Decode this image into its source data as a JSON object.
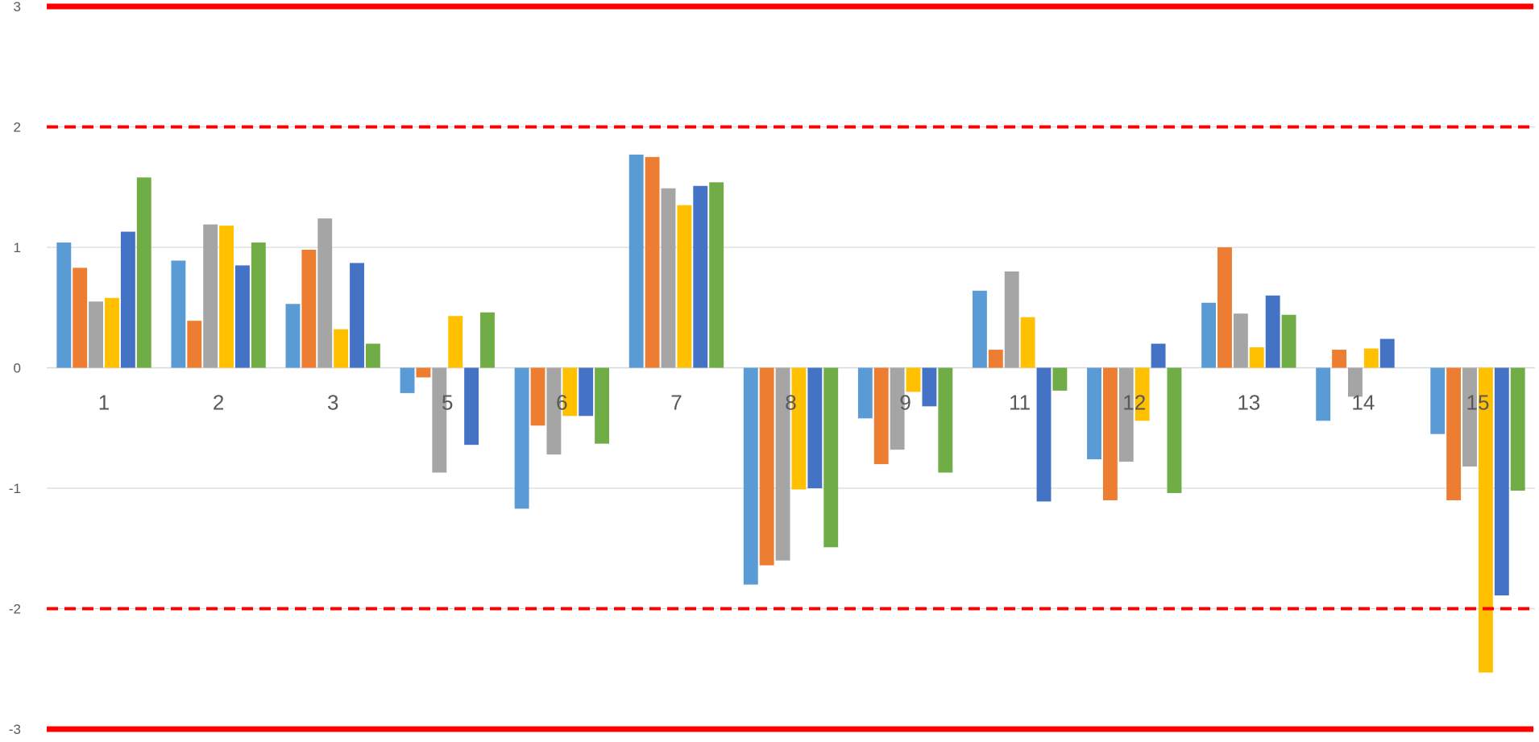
{
  "chart_data": {
    "type": "bar",
    "title": "",
    "xlabel": "",
    "ylabel": "",
    "ylim": [
      -3,
      3
    ],
    "yticks": [
      3,
      2,
      1,
      0,
      -1,
      -2,
      -3
    ],
    "grid": true,
    "legend": "none",
    "categories": [
      "1",
      "2",
      "3",
      "5",
      "6",
      "7",
      "8",
      "9",
      "11",
      "12",
      "13",
      "14",
      "15"
    ],
    "series": [
      {
        "color": "#5B9BD5",
        "values": [
          1.04,
          0.89,
          0.53,
          -0.21,
          -1.17,
          1.77,
          -1.8,
          -0.42,
          0.64,
          -0.76,
          0.54,
          -0.44,
          -0.55
        ]
      },
      {
        "color": "#ED7D31",
        "values": [
          0.83,
          0.39,
          0.98,
          -0.08,
          -0.48,
          1.75,
          -1.64,
          -0.8,
          0.15,
          -1.1,
          1.0,
          0.15,
          -1.1
        ]
      },
      {
        "color": "#A5A5A5",
        "values": [
          0.55,
          1.19,
          1.24,
          -0.87,
          -0.72,
          1.49,
          -1.6,
          -0.68,
          0.8,
          -0.78,
          0.45,
          -0.24,
          -0.82
        ]
      },
      {
        "color": "#FFC000",
        "values": [
          0.58,
          1.18,
          0.32,
          0.43,
          -0.4,
          1.35,
          -1.01,
          -0.2,
          0.42,
          -0.44,
          0.17,
          0.16,
          -2.53
        ]
      },
      {
        "color": "#4472C4",
        "values": [
          1.13,
          0.85,
          0.87,
          -0.64,
          -0.4,
          1.51,
          -1.0,
          -0.32,
          -1.11,
          0.2,
          0.6,
          0.24,
          -1.89
        ]
      },
      {
        "color": "#70AD47",
        "values": [
          1.58,
          1.04,
          0.2,
          0.46,
          -0.63,
          1.54,
          -1.49,
          -0.87,
          -0.19,
          -1.04,
          0.44,
          0.0,
          -1.02
        ]
      }
    ],
    "reference_lines": [
      {
        "value": 3,
        "style": "solid",
        "color": "#FF0000"
      },
      {
        "value": 2,
        "style": "dashed",
        "color": "#FF0000"
      },
      {
        "value": -2,
        "style": "dashed",
        "color": "#FF0000"
      },
      {
        "value": -3,
        "style": "solid",
        "color": "#FF0000"
      }
    ]
  }
}
